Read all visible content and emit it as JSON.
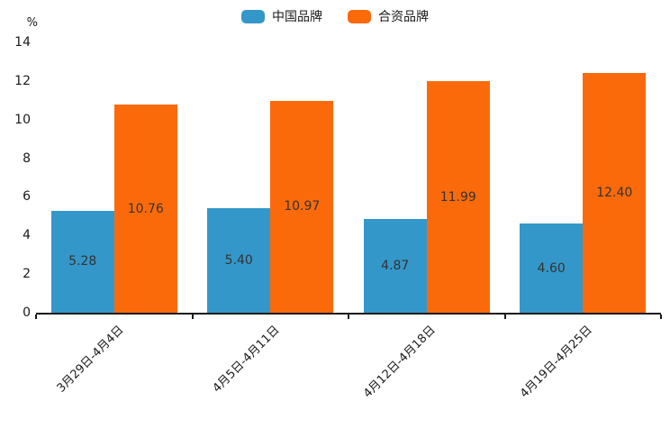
{
  "chart_data": {
    "type": "bar",
    "ylabel": "%",
    "categories": [
      "3月29日-4月4日",
      "4月5日-4月11日",
      "4月12日-4月18日",
      "4月19日-4月25日"
    ],
    "series": [
      {
        "name": "中国品牌",
        "color": "#3497c9",
        "values": [
          5.28,
          5.4,
          4.87,
          4.6
        ]
      },
      {
        "name": "合资品牌",
        "color": "#fb6a0a",
        "values": [
          10.76,
          10.97,
          11.99,
          12.4
        ]
      }
    ],
    "ylim": [
      0,
      14
    ],
    "ytick_step": 2,
    "grid": false,
    "legend_position": "top-center",
    "value_label_position": "inside-center",
    "value_label_decimals": 2,
    "xtick_rotation": 45,
    "axis_color": "#1a1a1a",
    "label_color": "#333333"
  }
}
